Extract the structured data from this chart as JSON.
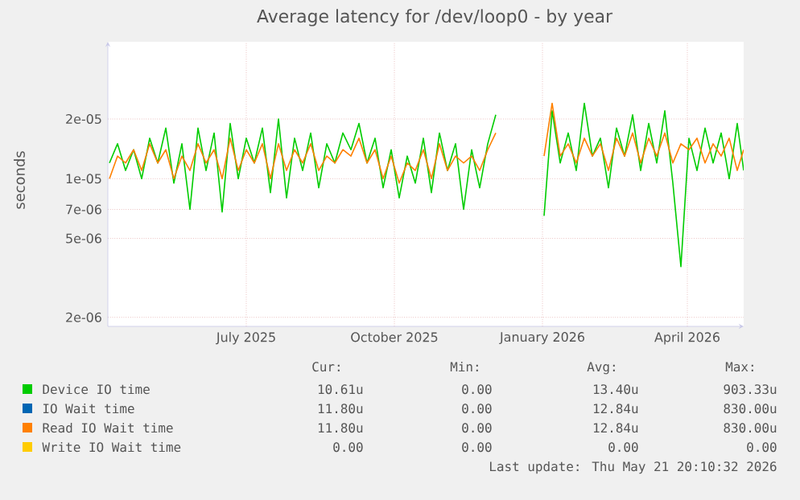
{
  "chart_data": {
    "type": "line",
    "title": "Average latency for /dev/loop0 - by year",
    "ylabel": "seconds",
    "log": true,
    "grid": true,
    "legend": "bottom",
    "xlim": [
      "2025-04-21",
      "2026-05-21"
    ],
    "xticks": [
      {
        "value": "2025-07-16",
        "label": "July 2025"
      },
      {
        "value": "2025-10-16",
        "label": "October 2025"
      },
      {
        "value": "2026-01-16",
        "label": "January 2026"
      },
      {
        "value": "2026-04-16",
        "label": "April 2026"
      }
    ],
    "ylim": [
      1.8e-06,
      4.9e-05
    ],
    "yticks": [
      {
        "value": 2e-06,
        "label": "2e-06"
      },
      {
        "value": 5e-06,
        "label": "5e-06"
      },
      {
        "value": 7e-06,
        "label": "7e-06"
      },
      {
        "value": 1e-05,
        "label": "1e-05"
      },
      {
        "value": 2e-05,
        "label": "2e-05"
      }
    ],
    "x": [
      "2025-04-22",
      "2025-04-27",
      "2025-05-02",
      "2025-05-07",
      "2025-05-12",
      "2025-05-17",
      "2025-05-22",
      "2025-05-27",
      "2025-06-01",
      "2025-06-06",
      "2025-06-11",
      "2025-06-16",
      "2025-06-21",
      "2025-06-26",
      "2025-07-01",
      "2025-07-06",
      "2025-07-11",
      "2025-07-16",
      "2025-07-21",
      "2025-07-26",
      "2025-07-31",
      "2025-08-05",
      "2025-08-10",
      "2025-08-15",
      "2025-08-20",
      "2025-08-25",
      "2025-08-30",
      "2025-09-04",
      "2025-09-09",
      "2025-09-14",
      "2025-09-19",
      "2025-09-24",
      "2025-09-29",
      "2025-10-04",
      "2025-10-09",
      "2025-10-14",
      "2025-10-19",
      "2025-10-24",
      "2025-10-29",
      "2025-11-03",
      "2025-11-08",
      "2025-11-13",
      "2025-11-18",
      "2025-11-23",
      "2025-11-28",
      "2025-12-03",
      "2025-12-08",
      "2025-12-13",
      "2025-12-18",
      "2025-12-23",
      "2025-12-28",
      "2026-01-02",
      "2026-01-07",
      "2026-01-12",
      "2026-01-17",
      "2026-01-22",
      "2026-01-27",
      "2026-02-01",
      "2026-02-06",
      "2026-02-11",
      "2026-02-16",
      "2026-02-21",
      "2026-02-26",
      "2026-03-03",
      "2026-03-08",
      "2026-03-13",
      "2026-03-18",
      "2026-03-23",
      "2026-03-28",
      "2026-04-02",
      "2026-04-07",
      "2026-04-12",
      "2026-04-17",
      "2026-04-22",
      "2026-04-27",
      "2026-05-02",
      "2026-05-07",
      "2026-05-12",
      "2026-05-17",
      "2026-05-21"
    ],
    "series": [
      {
        "name": "Device IO time",
        "color": "#00cc00",
        "values": [
          1.2e-05,
          1.5e-05,
          1.1e-05,
          1.4e-05,
          1e-05,
          1.6e-05,
          1.2e-05,
          1.8e-05,
          9.5e-06,
          1.5e-05,
          7e-06,
          1.8e-05,
          1.1e-05,
          1.7e-05,
          6.8e-06,
          1.9e-05,
          1e-05,
          1.6e-05,
          1.2e-05,
          1.8e-05,
          8.5e-06,
          2e-05,
          8e-06,
          1.6e-05,
          1.1e-05,
          1.7e-05,
          9e-06,
          1.5e-05,
          1.2e-05,
          1.7e-05,
          1.4e-05,
          1.9e-05,
          1.2e-05,
          1.6e-05,
          9e-06,
          1.4e-05,
          8e-06,
          1.3e-05,
          9.5e-06,
          1.6e-05,
          8.5e-06,
          1.7e-05,
          1.1e-05,
          1.5e-05,
          7e-06,
          1.4e-05,
          9e-06,
          1.5e-05,
          2.1e-05,
          null,
          null,
          null,
          null,
          null,
          6.5e-06,
          2.2e-05,
          1.2e-05,
          1.7e-05,
          1.1e-05,
          2.4e-05,
          1.3e-05,
          1.6e-05,
          9e-06,
          1.8e-05,
          1.3e-05,
          2.1e-05,
          1.1e-05,
          1.9e-05,
          1.2e-05,
          2.2e-05,
          9.5e-06,
          3.6e-06,
          1.6e-05,
          1.1e-05,
          1.8e-05,
          1.2e-05,
          1.7e-05,
          1e-05,
          1.9e-05,
          1.1e-05
        ]
      },
      {
        "name": "IO Wait time",
        "color": "#0066b3",
        "values": [
          null,
          null,
          null,
          null,
          null,
          null,
          null,
          null,
          null,
          null,
          null,
          null,
          null,
          null,
          null,
          null,
          null,
          null,
          null,
          null,
          null,
          null,
          null,
          null,
          null,
          null,
          null,
          null,
          null,
          null,
          null,
          null,
          null,
          null,
          null,
          null,
          null,
          null,
          null,
          null,
          null,
          null,
          null,
          null,
          null,
          null,
          null,
          null,
          null,
          null,
          null,
          null,
          null,
          null,
          null,
          null,
          null,
          null,
          null,
          null,
          null,
          null,
          null,
          null,
          null,
          null,
          null,
          null,
          null,
          null,
          null,
          null,
          null,
          null,
          null,
          null,
          null,
          null,
          null,
          null
        ]
      },
      {
        "name": "Read IO Wait time",
        "color": "#ff8000",
        "values": [
          1e-05,
          1.3e-05,
          1.2e-05,
          1.4e-05,
          1.1e-05,
          1.5e-05,
          1.2e-05,
          1.4e-05,
          1e-05,
          1.3e-05,
          1.1e-05,
          1.5e-05,
          1.2e-05,
          1.4e-05,
          1e-05,
          1.6e-05,
          1.1e-05,
          1.4e-05,
          1.2e-05,
          1.5e-05,
          1e-05,
          1.5e-05,
          1.1e-05,
          1.4e-05,
          1.2e-05,
          1.5e-05,
          1.1e-05,
          1.3e-05,
          1.2e-05,
          1.4e-05,
          1.3e-05,
          1.6e-05,
          1.2e-05,
          1.4e-05,
          1e-05,
          1.3e-05,
          9.5e-06,
          1.2e-05,
          1.1e-05,
          1.4e-05,
          1e-05,
          1.5e-05,
          1.1e-05,
          1.3e-05,
          1.2e-05,
          1.3e-05,
          1.1e-05,
          1.4e-05,
          1.7e-05,
          null,
          null,
          null,
          null,
          null,
          1.3e-05,
          2.4e-05,
          1.3e-05,
          1.5e-05,
          1.2e-05,
          1.6e-05,
          1.3e-05,
          1.5e-05,
          1.1e-05,
          1.6e-05,
          1.3e-05,
          1.7e-05,
          1.2e-05,
          1.6e-05,
          1.3e-05,
          1.7e-05,
          1.2e-05,
          1.5e-05,
          1.4e-05,
          1.6e-05,
          1.2e-05,
          1.5e-05,
          1.3e-05,
          1.6e-05,
          1.1e-05,
          1.4e-05
        ]
      },
      {
        "name": "Write IO Wait time",
        "color": "#ffcc00",
        "values": [
          null,
          null,
          null,
          null,
          null,
          null,
          null,
          null,
          null,
          null,
          null,
          null,
          null,
          null,
          null,
          null,
          null,
          null,
          null,
          null,
          null,
          null,
          null,
          null,
          null,
          null,
          null,
          null,
          null,
          null,
          null,
          null,
          null,
          null,
          null,
          null,
          null,
          null,
          null,
          null,
          null,
          null,
          null,
          null,
          null,
          null,
          null,
          null,
          null,
          null,
          null,
          null,
          null,
          null,
          null,
          null,
          null,
          null,
          null,
          null,
          null,
          null,
          null,
          null,
          null,
          null,
          null,
          null,
          null,
          null,
          null,
          null,
          null,
          null,
          null,
          null,
          null,
          null,
          null,
          null
        ]
      }
    ],
    "annotations": [
      "Cur:",
      "Min:",
      "Avg:",
      "Max:",
      "10.61u",
      "0.00",
      "13.40u",
      "903.33u",
      "11.80u",
      "0.00",
      "12.84u",
      "830.00u",
      "11.80u",
      "0.00",
      "12.84u",
      "830.00u",
      "0.00",
      "0.00",
      "0.00",
      "0.00",
      "Last update: Thu May 21 20:10:32 2026"
    ]
  }
}
